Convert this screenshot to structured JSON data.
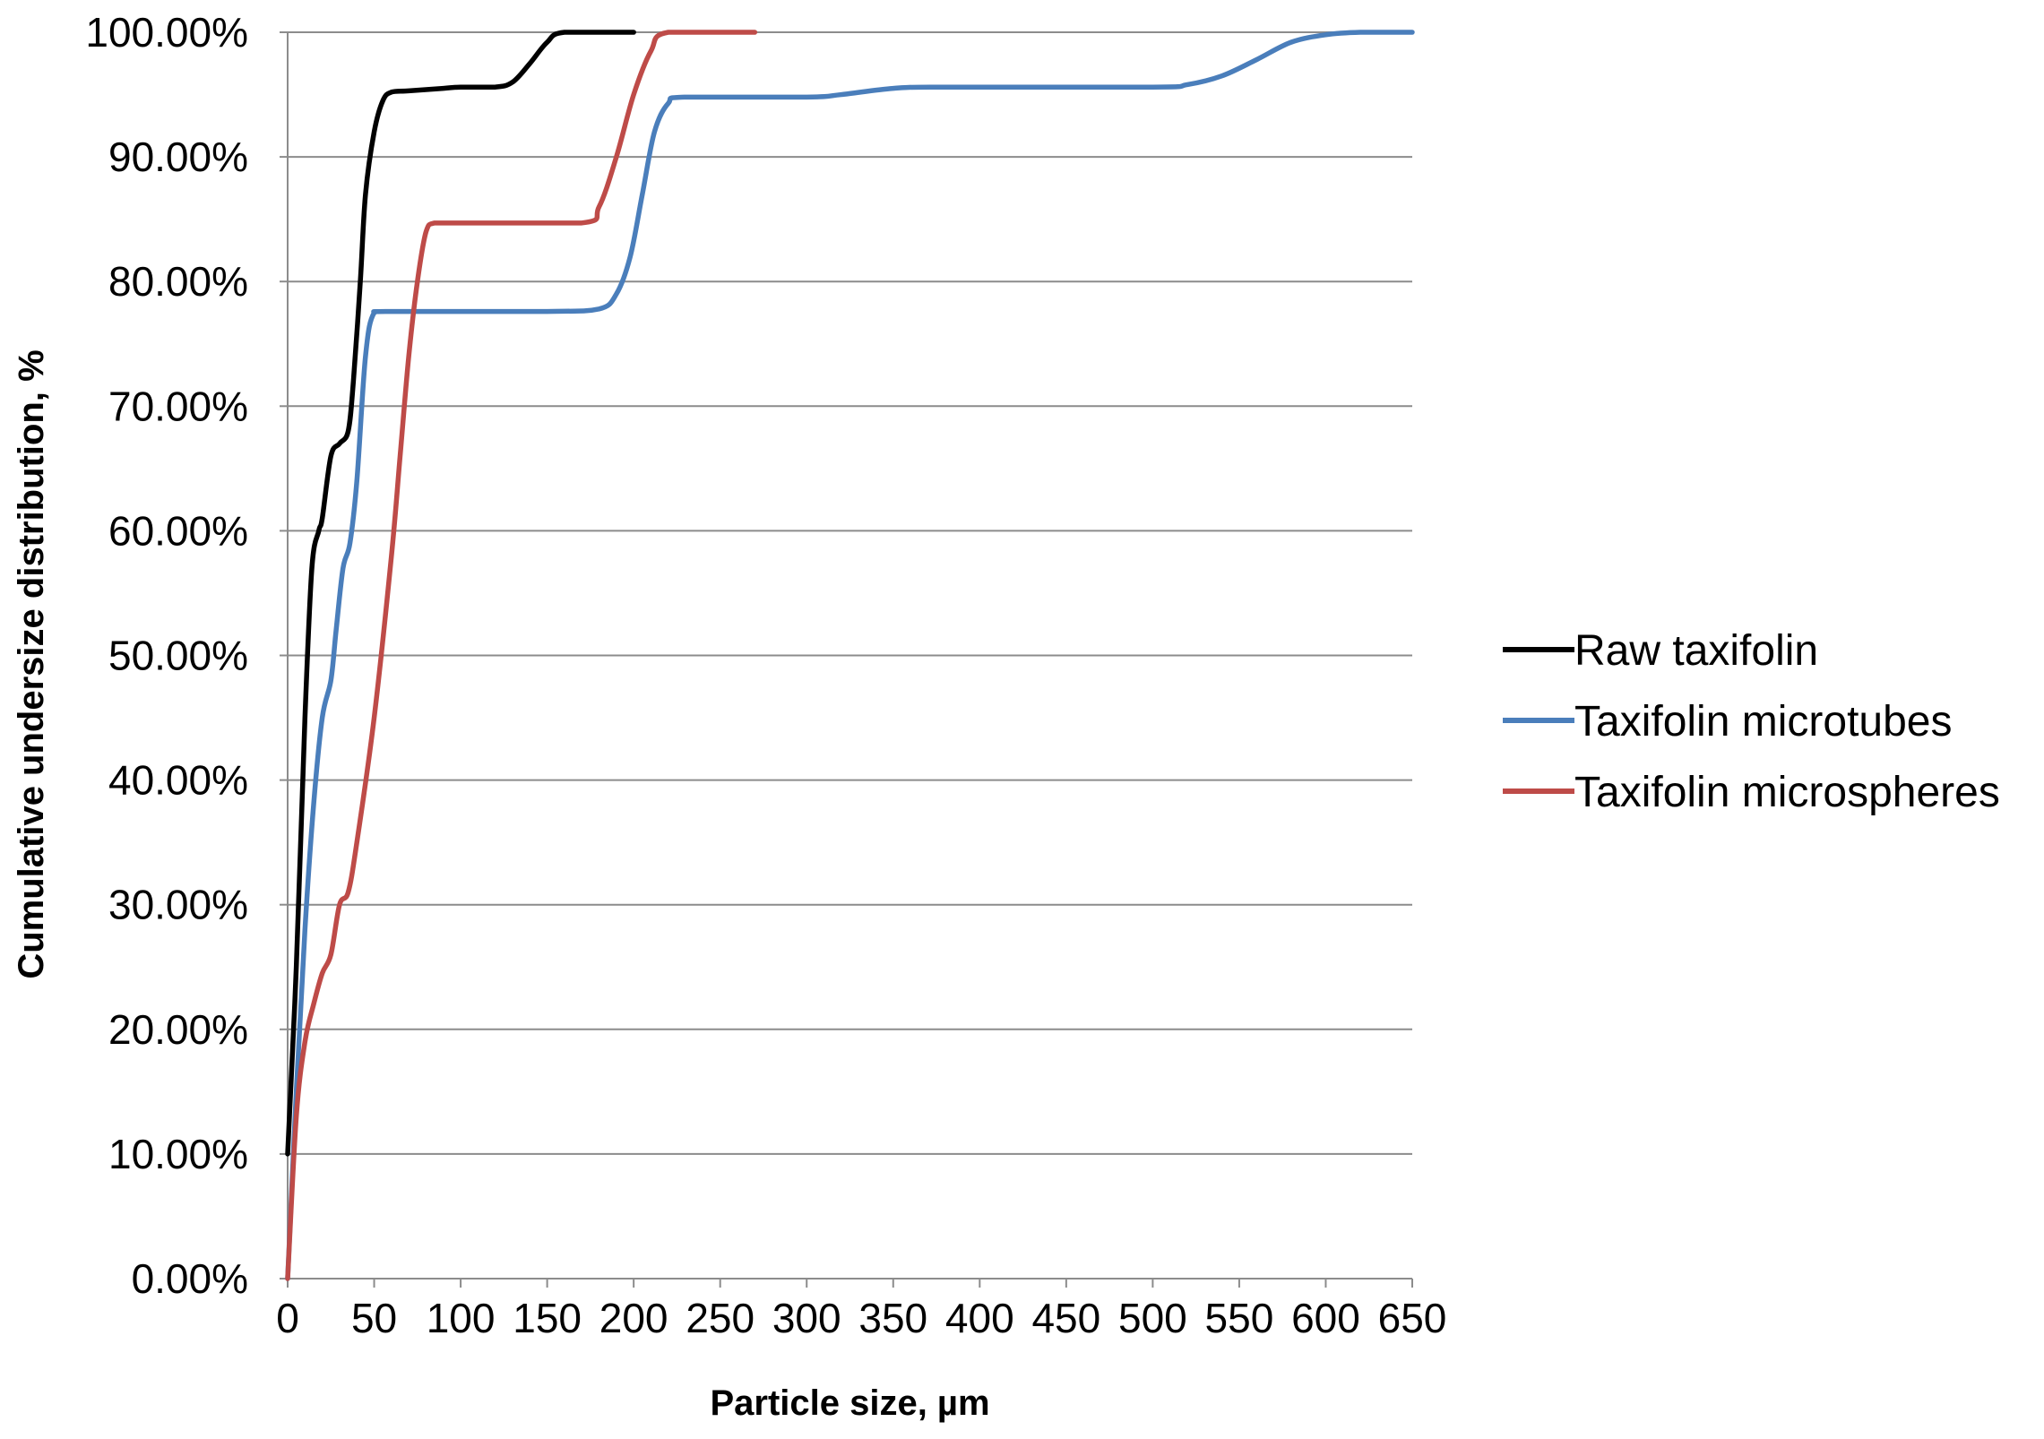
{
  "chart_data": {
    "type": "line",
    "title": "",
    "xlabel": "Particle size, µm",
    "ylabel": "Cumulative undersize distribution, %",
    "xlim": [
      0,
      650
    ],
    "ylim": [
      0,
      100
    ],
    "x_ticks": [
      "0",
      "50",
      "100",
      "150",
      "200",
      "250",
      "300",
      "350",
      "400",
      "450",
      "500",
      "550",
      "600",
      "650"
    ],
    "y_ticks": [
      "0.00%",
      "10.00%",
      "20.00%",
      "30.00%",
      "40.00%",
      "50.00%",
      "60.00%",
      "70.00%",
      "80.00%",
      "90.00%",
      "100.00%"
    ],
    "grid": "horizontal",
    "legend_position": "right",
    "series": [
      {
        "name": "Raw taxifolin",
        "color": "#000000",
        "points": [
          [
            0,
            10
          ],
          [
            5,
            25
          ],
          [
            10,
            45
          ],
          [
            14,
            57
          ],
          [
            18,
            60
          ],
          [
            20,
            61
          ],
          [
            25,
            66
          ],
          [
            30,
            67
          ],
          [
            35,
            68
          ],
          [
            38,
            72
          ],
          [
            42,
            80
          ],
          [
            45,
            87
          ],
          [
            50,
            92
          ],
          [
            55,
            94.5
          ],
          [
            60,
            95.2
          ],
          [
            70,
            95.3
          ],
          [
            90,
            95.5
          ],
          [
            100,
            95.6
          ],
          [
            120,
            95.6
          ],
          [
            130,
            96
          ],
          [
            140,
            97.5
          ],
          [
            150,
            99.2
          ],
          [
            160,
            100
          ],
          [
            200,
            100
          ]
        ]
      },
      {
        "name": "Taxifolin microtubes",
        "color": "#4a7ebb",
        "points": [
          [
            0,
            0
          ],
          [
            5,
            15
          ],
          [
            10,
            28
          ],
          [
            15,
            38
          ],
          [
            20,
            45
          ],
          [
            25,
            48
          ],
          [
            28,
            52
          ],
          [
            32,
            57
          ],
          [
            36,
            59
          ],
          [
            40,
            64
          ],
          [
            45,
            74
          ],
          [
            50,
            77.5
          ],
          [
            60,
            77.6
          ],
          [
            150,
            77.6
          ],
          [
            180,
            77.8
          ],
          [
            190,
            79
          ],
          [
            198,
            82
          ],
          [
            205,
            87
          ],
          [
            212,
            92
          ],
          [
            220,
            94.3
          ],
          [
            230,
            94.8
          ],
          [
            300,
            94.8
          ],
          [
            320,
            95
          ],
          [
            350,
            95.5
          ],
          [
            380,
            95.6
          ],
          [
            500,
            95.6
          ],
          [
            520,
            95.8
          ],
          [
            540,
            96.5
          ],
          [
            560,
            97.8
          ],
          [
            580,
            99.2
          ],
          [
            600,
            99.8
          ],
          [
            620,
            100
          ],
          [
            650,
            100
          ]
        ]
      },
      {
        "name": "Taxifolin microspheres",
        "color": "#be4b48",
        "points": [
          [
            0,
            0
          ],
          [
            5,
            13
          ],
          [
            10,
            19
          ],
          [
            15,
            22
          ],
          [
            20,
            24.5
          ],
          [
            25,
            26
          ],
          [
            30,
            30
          ],
          [
            35,
            31
          ],
          [
            40,
            35
          ],
          [
            50,
            45
          ],
          [
            60,
            58
          ],
          [
            65,
            66
          ],
          [
            70,
            74
          ],
          [
            75,
            80
          ],
          [
            80,
            84
          ],
          [
            85,
            84.7
          ],
          [
            100,
            84.7
          ],
          [
            170,
            84.7
          ],
          [
            180,
            86
          ],
          [
            190,
            90
          ],
          [
            200,
            95
          ],
          [
            210,
            98.5
          ],
          [
            220,
            100
          ],
          [
            270,
            100
          ]
        ]
      }
    ]
  }
}
